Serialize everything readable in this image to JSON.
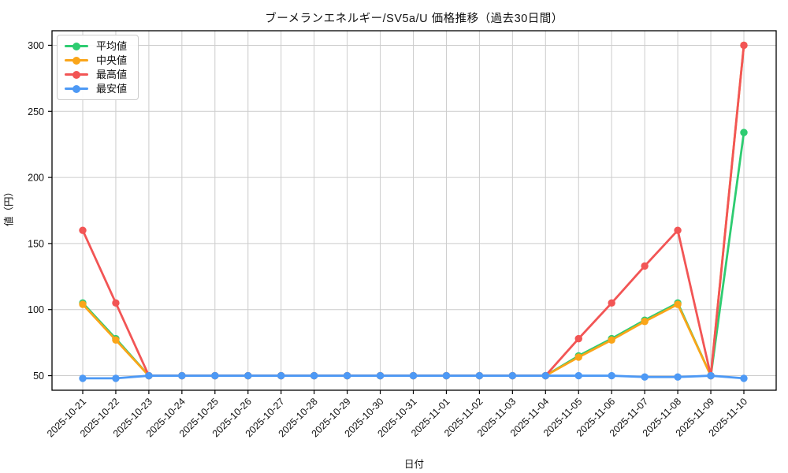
{
  "figure": {
    "title": "ブーメランエネルギー/SV5a/U 価格推移（過去30日間）",
    "xlabel": "日付",
    "ylabel": "値（円）"
  },
  "chart_data": {
    "type": "line",
    "title": "ブーメランエネルギー/SV5a/U 価格推移（過去30日間）",
    "xlabel": "日付",
    "ylabel": "値（円）",
    "grid": true,
    "legend_position": "upper-left",
    "x_categories": [
      "2025-10-21",
      "2025-10-22",
      "2025-10-23",
      "2025-10-24",
      "2025-10-25",
      "2025-10-26",
      "2025-10-27",
      "2025-10-28",
      "2025-10-29",
      "2025-10-30",
      "2025-10-31",
      "2025-11-01",
      "2025-11-02",
      "2025-11-03",
      "2025-11-04",
      "2025-11-05",
      "2025-11-06",
      "2025-11-07",
      "2025-11-08",
      "2025-11-09",
      "2025-11-10"
    ],
    "yticks": [
      50,
      100,
      150,
      200,
      250,
      300
    ],
    "ylim": [
      39,
      311
    ],
    "marker": "circle",
    "series": [
      {
        "name": "平均値",
        "key": "mean",
        "color": "#2ecc71",
        "values": [
          105,
          78,
          50,
          50,
          50,
          50,
          50,
          50,
          50,
          50,
          50,
          50,
          50,
          50,
          50,
          65,
          78,
          92,
          105,
          50,
          234
        ]
      },
      {
        "name": "中央値",
        "key": "median",
        "color": "#faa519",
        "values": [
          104,
          77,
          50,
          50,
          50,
          50,
          50,
          50,
          50,
          50,
          50,
          50,
          50,
          50,
          50,
          64,
          77,
          91,
          104,
          50,
          300
        ]
      },
      {
        "name": "最高値",
        "key": "max",
        "color": "#f25555",
        "values": [
          160,
          105,
          50,
          50,
          50,
          50,
          50,
          50,
          50,
          50,
          50,
          50,
          50,
          50,
          50,
          78,
          105,
          133,
          160,
          50,
          300
        ]
      },
      {
        "name": "最安値",
        "key": "min",
        "color": "#4d99f5",
        "values": [
          48,
          48,
          50,
          50,
          50,
          50,
          50,
          50,
          50,
          50,
          50,
          50,
          50,
          50,
          50,
          50,
          50,
          49,
          49,
          50,
          48
        ]
      }
    ],
    "colors": {
      "grid": "#cccccc",
      "spine": "#000000",
      "text": "#111111",
      "background": "#ffffff"
    }
  }
}
